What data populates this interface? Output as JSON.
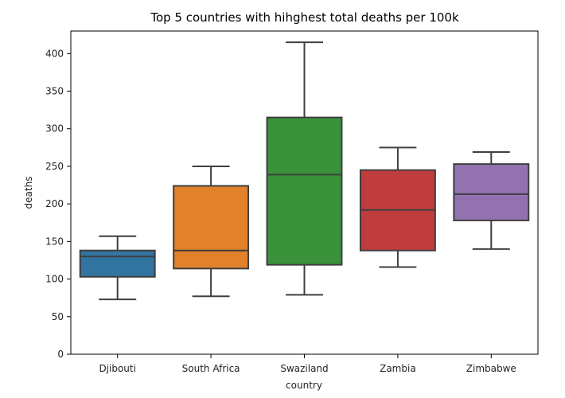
{
  "chart_data": {
    "type": "box",
    "title": "Top 5 countries with hihghest total deaths per 100k",
    "xlabel": "country",
    "ylabel": "deaths",
    "ylim": [
      0,
      430
    ],
    "yticks": [
      0,
      50,
      100,
      150,
      200,
      250,
      300,
      350,
      400
    ],
    "grid": false,
    "categories": [
      "Djibouti",
      "South Africa",
      "Swaziland",
      "Zambia",
      "Zimbabwe"
    ],
    "colors": [
      "#3274a1",
      "#e1812c",
      "#3a923a",
      "#c03d3e",
      "#9372b2"
    ],
    "boxes": [
      {
        "min": 73,
        "q1": 103,
        "median": 130,
        "q3": 138,
        "max": 157
      },
      {
        "min": 77,
        "q1": 114,
        "median": 138,
        "q3": 224,
        "max": 250
      },
      {
        "min": 79,
        "q1": 119,
        "median": 239,
        "q3": 315,
        "max": 415
      },
      {
        "min": 116,
        "q1": 138,
        "median": 192,
        "q3": 245,
        "max": 275
      },
      {
        "min": 140,
        "q1": 178,
        "median": 213,
        "q3": 253,
        "max": 269
      }
    ]
  }
}
